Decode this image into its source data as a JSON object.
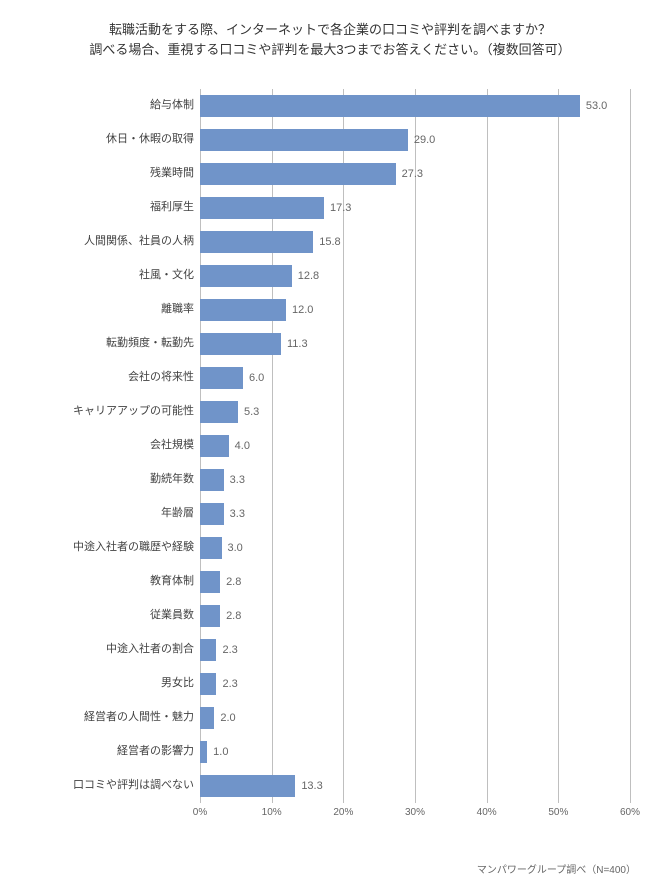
{
  "title_line1": "転職活動をする際、インターネットで各企業の口コミや評判を調べますか？",
  "title_line2": "調べる場合、重視する口コミや評判を最大3つまでお答えください。（複数回答可）",
  "footer": "マンパワーグループ調べ（N=400）",
  "chart": {
    "type": "bar",
    "orientation": "horizontal",
    "bar_color": "#7094c9",
    "value_color": "#666666",
    "label_color": "#424242",
    "grid_color": "#bfbfbf",
    "background_color": "#ffffff",
    "label_fontsize": 11,
    "value_fontsize": 11,
    "tick_fontsize": 10,
    "xlim": [
      0,
      60
    ],
    "xtick_step": 10,
    "xticks": [
      "0%",
      "10%",
      "20%",
      "30%",
      "40%",
      "50%",
      "60%"
    ],
    "categories": [
      "給与体制",
      "休日・休暇の取得",
      "残業時間",
      "福利厚生",
      "人間関係、社員の人柄",
      "社風・文化",
      "離職率",
      "転勤頻度・転勤先",
      "会社の将来性",
      "キャリアアップの可能性",
      "会社規模",
      "勤続年数",
      "年齢層",
      "中途入社者の職歴や経験",
      "教育体制",
      "従業員数",
      "中途入社者の割合",
      "男女比",
      "経営者の人間性・魅力",
      "経営者の影響力",
      "口コミや評判は調べない"
    ],
    "values": [
      53.0,
      29.0,
      27.3,
      17.3,
      15.8,
      12.8,
      12.0,
      11.3,
      6.0,
      5.3,
      4.0,
      3.3,
      3.3,
      3.0,
      2.8,
      2.8,
      2.3,
      2.3,
      2.0,
      1.0,
      13.3
    ]
  }
}
